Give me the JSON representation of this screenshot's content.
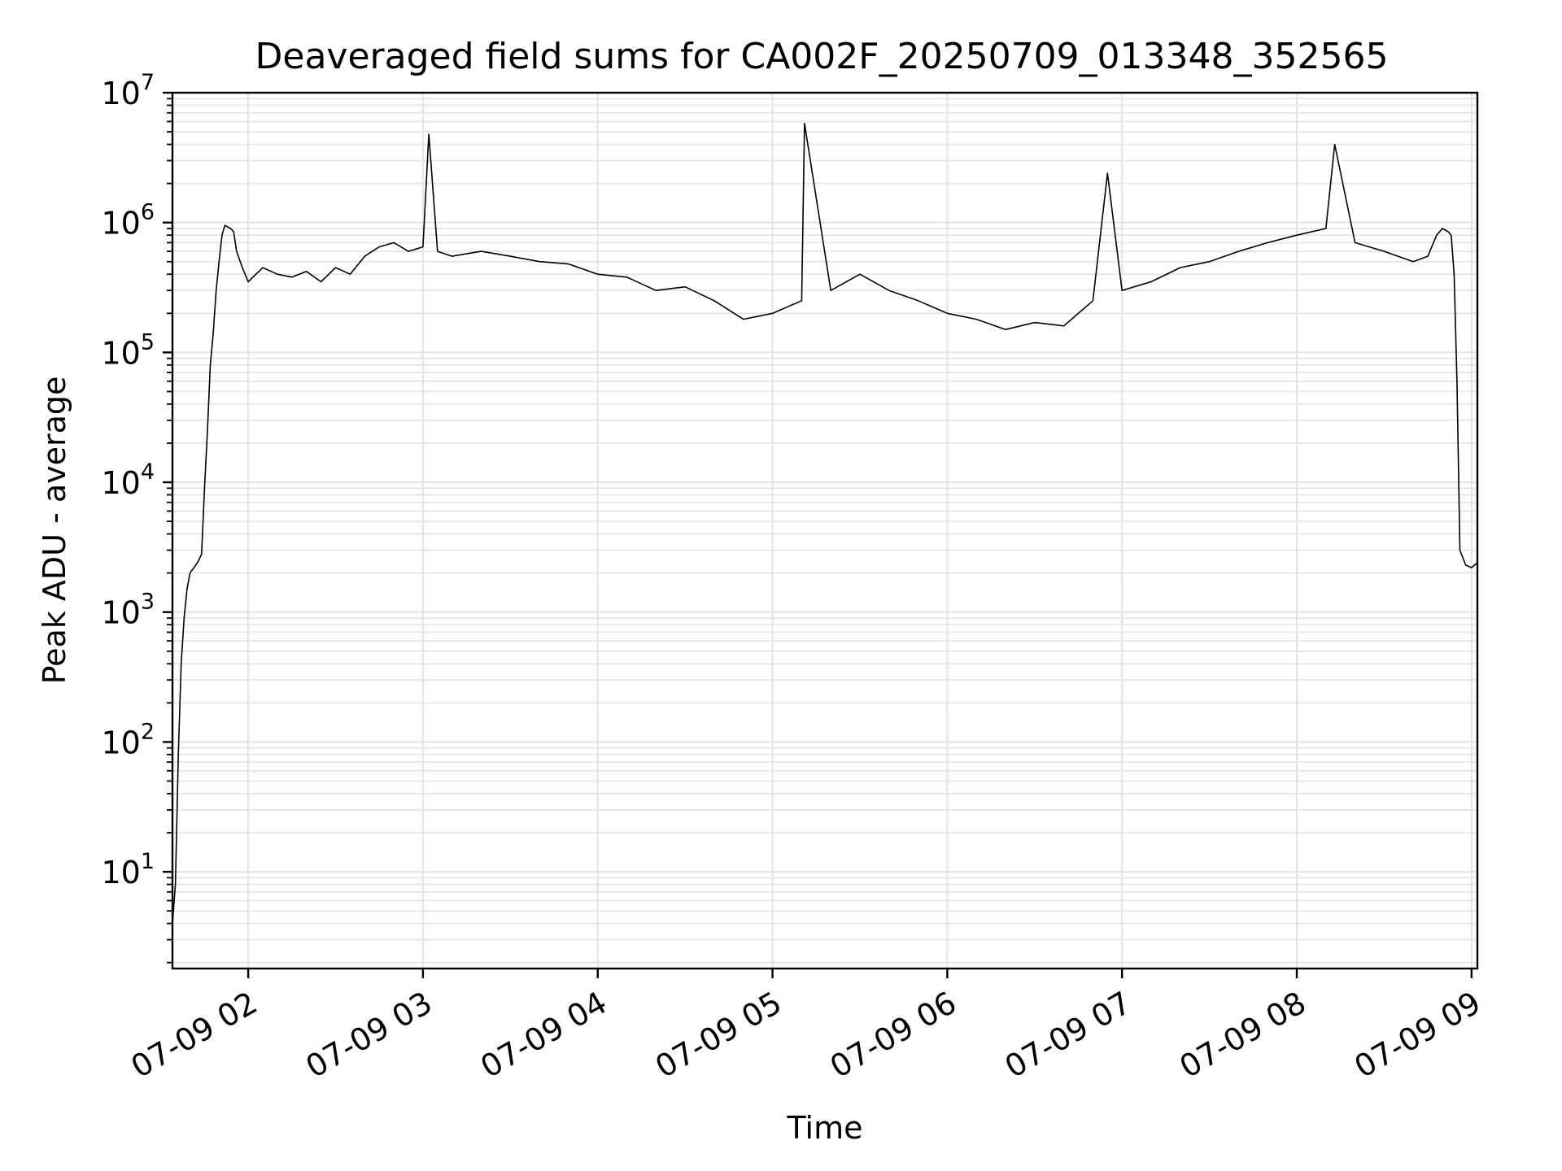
{
  "chart_data": {
    "type": "line",
    "title": "Deaveraged field sums for CA002F_20250709_013348_352565",
    "xlabel": "Time",
    "ylabel": "Peak ADU - average",
    "yscale": "log",
    "ylim": [
      1.8,
      10000000
    ],
    "xlim": [
      "2025-07-09 01:34",
      "2025-07-09 09:02"
    ],
    "grid": true,
    "x_ticks": [
      "07-09 02",
      "07-09 03",
      "07-09 04",
      "07-09 05",
      "07-09 06",
      "07-09 07",
      "07-09 08",
      "07-09 09"
    ],
    "y_ticks": [
      {
        "base": "10",
        "exp": "1"
      },
      {
        "base": "10",
        "exp": "2"
      },
      {
        "base": "10",
        "exp": "3"
      },
      {
        "base": "10",
        "exp": "4"
      },
      {
        "base": "10",
        "exp": "5"
      },
      {
        "base": "10",
        "exp": "6"
      },
      {
        "base": "10",
        "exp": "7"
      }
    ],
    "line_color": "#000000",
    "grid_color": "#e3e3e3",
    "series": [
      {
        "x": [
          "2025-07-09 01:34",
          "2025-07-09 01:35",
          "2025-07-09 01:36",
          "2025-07-09 01:37",
          "2025-07-09 01:38",
          "2025-07-09 01:39",
          "2025-07-09 01:40",
          "2025-07-09 01:42",
          "2025-07-09 01:43",
          "2025-07-09 01:44",
          "2025-07-09 01:45",
          "2025-07-09 01:46",
          "2025-07-09 01:47",
          "2025-07-09 01:48",
          "2025-07-09 01:49",
          "2025-07-09 01:50",
          "2025-07-09 01:51",
          "2025-07-09 01:52",
          "2025-07-09 01:54",
          "2025-07-09 01:55",
          "2025-07-09 01:56",
          "2025-07-09 01:58",
          "2025-07-09 02:00",
          "2025-07-09 02:05",
          "2025-07-09 02:10",
          "2025-07-09 02:15",
          "2025-07-09 02:20",
          "2025-07-09 02:25",
          "2025-07-09 02:30",
          "2025-07-09 02:35",
          "2025-07-09 02:40",
          "2025-07-09 02:45",
          "2025-07-09 02:50",
          "2025-07-09 02:55",
          "2025-07-09 03:00",
          "2025-07-09 03:02",
          "2025-07-09 03:05",
          "2025-07-09 03:10",
          "2025-07-09 03:20",
          "2025-07-09 03:30",
          "2025-07-09 03:40",
          "2025-07-09 03:50",
          "2025-07-09 04:00",
          "2025-07-09 04:10",
          "2025-07-09 04:20",
          "2025-07-09 04:30",
          "2025-07-09 04:40",
          "2025-07-09 04:50",
          "2025-07-09 05:00",
          "2025-07-09 05:10",
          "2025-07-09 05:11",
          "2025-07-09 05:20",
          "2025-07-09 05:30",
          "2025-07-09 05:40",
          "2025-07-09 05:50",
          "2025-07-09 06:00",
          "2025-07-09 06:10",
          "2025-07-09 06:20",
          "2025-07-09 06:30",
          "2025-07-09 06:40",
          "2025-07-09 06:50",
          "2025-07-09 06:55",
          "2025-07-09 07:00",
          "2025-07-09 07:10",
          "2025-07-09 07:20",
          "2025-07-09 07:30",
          "2025-07-09 07:40",
          "2025-07-09 07:50",
          "2025-07-09 08:00",
          "2025-07-09 08:10",
          "2025-07-09 08:13",
          "2025-07-09 08:20",
          "2025-07-09 08:30",
          "2025-07-09 08:40",
          "2025-07-09 08:45",
          "2025-07-09 08:48",
          "2025-07-09 08:50",
          "2025-07-09 08:52",
          "2025-07-09 08:53",
          "2025-07-09 08:54",
          "2025-07-09 08:55",
          "2025-07-09 08:56",
          "2025-07-09 08:58",
          "2025-07-09 09:00",
          "2025-07-09 09:02"
        ],
        "y": [
          4,
          8,
          80,
          400,
          900,
          1500,
          2000,
          2300,
          2500,
          2800,
          9000,
          25000,
          80000,
          140000,
          300000,
          500000,
          800000,
          950000,
          900000,
          850000,
          600000,
          450000,
          350000,
          450000,
          400000,
          380000,
          420000,
          350000,
          450000,
          400000,
          550000,
          650000,
          700000,
          600000,
          650000,
          4800000,
          600000,
          550000,
          600000,
          550000,
          500000,
          480000,
          400000,
          380000,
          300000,
          320000,
          250000,
          180000,
          200000,
          250000,
          5800000,
          300000,
          400000,
          300000,
          250000,
          200000,
          180000,
          150000,
          170000,
          160000,
          250000,
          2400000,
          300000,
          350000,
          450000,
          500000,
          600000,
          700000,
          800000,
          900000,
          4000000,
          700000,
          600000,
          500000,
          550000,
          800000,
          900000,
          850000,
          800000,
          400000,
          60000,
          3000,
          2300,
          2200,
          2400
        ]
      }
    ]
  }
}
